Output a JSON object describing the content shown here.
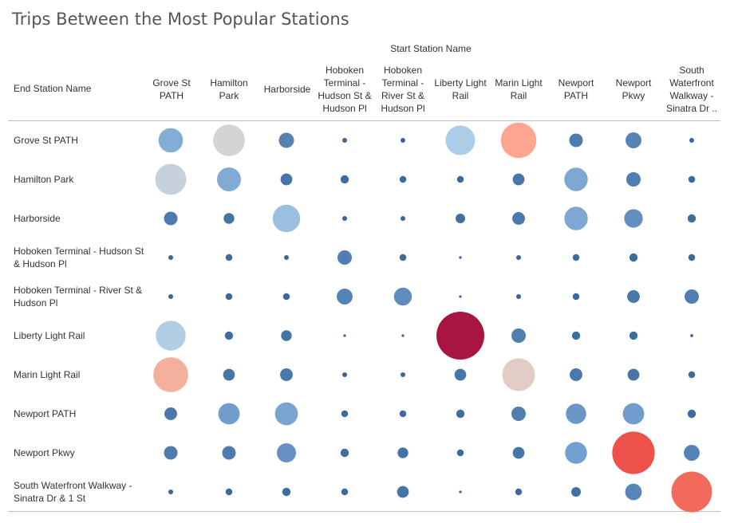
{
  "title": "Trips Between the Most Popular Stations",
  "chart_data": {
    "type": "scatter",
    "title": "Trips Between the Most Popular Stations",
    "xlabel": "Start Station Name",
    "ylabel": "End Station Name",
    "start_stations": [
      "Grove St PATH",
      "Hamilton Park",
      "Harborside",
      "Hoboken Terminal - Hudson St & Hudson Pl",
      "Hoboken Terminal - River St & Hudson Pl",
      "Liberty Light Rail",
      "Marin Light Rail",
      "Newport PATH",
      "Newport Pkwy",
      "South Waterfront Walkway - Sinatra Dr .."
    ],
    "end_stations": [
      "Grove St PATH",
      "Hamilton Park",
      "Harborside",
      "Hoboken Terminal - Hudson St & Hudson Pl",
      "Hoboken Terminal - River St & Hudson Pl",
      "Liberty Light Rail",
      "Marin Light Rail",
      "Newport PATH",
      "Newport Pkwy",
      "South Waterfront Walkway - Sinatra Dr & 1 St"
    ],
    "value_note": "relative trip counts (circle size and color)",
    "max_value": 100,
    "colors": {
      "low": "#2f5f95",
      "mid": "#d9d4d2",
      "high": "#a50d3a"
    },
    "values": [
      [
        26,
        44,
        10,
        1,
        1,
        38,
        55,
        8,
        11,
        1
      ],
      [
        42,
        25,
        6,
        3,
        2,
        2,
        6,
        24,
        9,
        2
      ],
      [
        8,
        5,
        33,
        1,
        1,
        4,
        7,
        24,
        15,
        3
      ],
      [
        1,
        2,
        1,
        9,
        2,
        0.3,
        1,
        2,
        3,
        2
      ],
      [
        1,
        2,
        2,
        11,
        14,
        0.2,
        1,
        2,
        7,
        9
      ],
      [
        39,
        3,
        5,
        0.3,
        0.3,
        100,
        9,
        3,
        3,
        0.4
      ],
      [
        53,
        6,
        7,
        1,
        1,
        6,
        47,
        7,
        6,
        2
      ],
      [
        7,
        20,
        23,
        2,
        2,
        3,
        9,
        18,
        20,
        3
      ],
      [
        8,
        8,
        16,
        3,
        5,
        2,
        6,
        21,
        79,
        11
      ],
      [
        1,
        2,
        3,
        2,
        6,
        0.3,
        2,
        4,
        12,
        72
      ]
    ]
  }
}
